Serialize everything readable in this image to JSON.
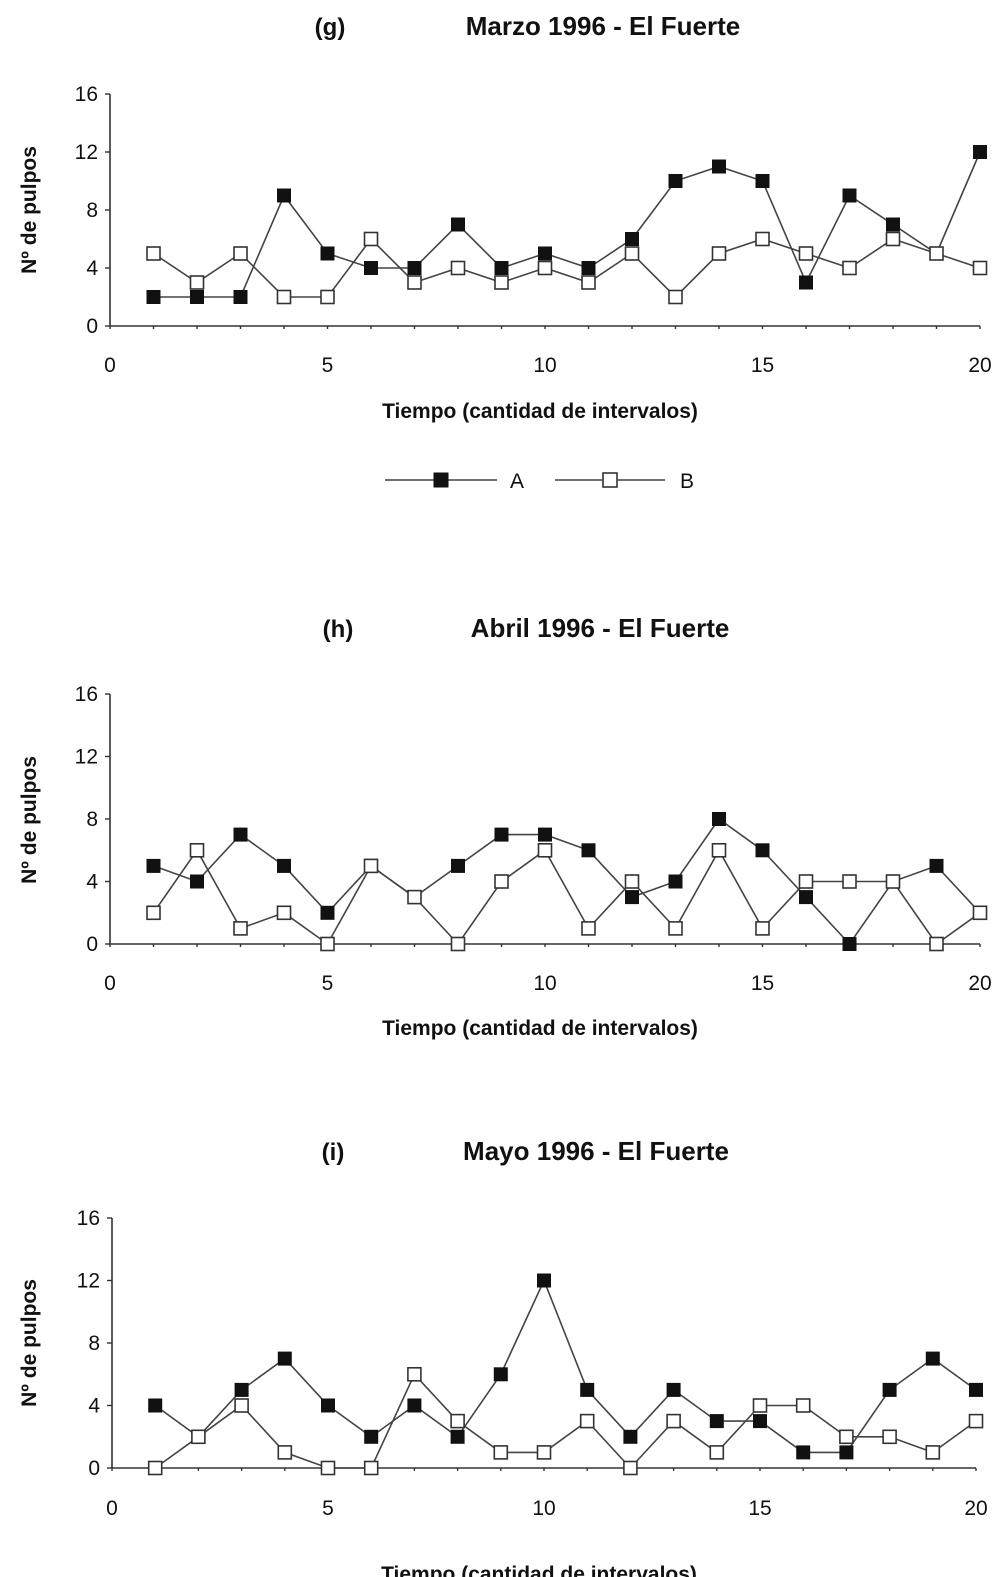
{
  "chart_data": [
    {
      "type": "line",
      "panel_label": "(g)",
      "title": "Marzo 1996 - El Fuerte",
      "xlabel": "Tiempo (cantidad de intervalos)",
      "ylabel": "Nº de pulpos",
      "xlim": [
        0,
        20
      ],
      "ylim": [
        0,
        16
      ],
      "xticks": [
        0,
        5,
        10,
        15,
        20
      ],
      "yticks": [
        0,
        4,
        8,
        12,
        16
      ],
      "grid": false,
      "x": [
        1,
        2,
        3,
        4,
        5,
        6,
        7,
        8,
        9,
        10,
        11,
        12,
        13,
        14,
        15,
        16,
        17,
        18,
        19,
        20
      ],
      "series": [
        {
          "name": "A",
          "marker": "filled-square",
          "values": [
            2,
            2,
            2,
            9,
            5,
            4,
            4,
            7,
            4,
            5,
            4,
            6,
            10,
            11,
            10,
            3,
            9,
            7,
            5,
            12
          ]
        },
        {
          "name": "B",
          "marker": "open-square",
          "values": [
            5,
            3,
            5,
            2,
            2,
            6,
            3,
            4,
            3,
            4,
            3,
            5,
            2,
            5,
            6,
            5,
            4,
            6,
            5,
            4
          ]
        }
      ],
      "legend": {
        "placement": "bottom-center",
        "entries": [
          "A",
          "B"
        ]
      }
    },
    {
      "type": "line",
      "panel_label": "(h)",
      "title": "Abril 1996 - El Fuerte",
      "xlabel": "Tiempo (cantidad de intervalos)",
      "ylabel": "Nº de pulpos",
      "xlim": [
        0,
        20
      ],
      "ylim": [
        0,
        16
      ],
      "xticks": [
        0,
        5,
        10,
        15,
        20
      ],
      "yticks": [
        0,
        4,
        8,
        12,
        16
      ],
      "grid": false,
      "x": [
        1,
        2,
        3,
        4,
        5,
        6,
        7,
        8,
        9,
        10,
        11,
        12,
        13,
        14,
        15,
        16,
        17,
        18,
        19,
        20
      ],
      "series": [
        {
          "name": "A",
          "marker": "filled-square",
          "values": [
            5,
            4,
            7,
            5,
            2,
            5,
            3,
            5,
            7,
            7,
            6,
            3,
            4,
            8,
            6,
            3,
            0,
            4,
            5,
            2
          ]
        },
        {
          "name": "B",
          "marker": "open-square",
          "values": [
            2,
            6,
            1,
            2,
            0,
            5,
            3,
            0,
            4,
            6,
            1,
            4,
            1,
            6,
            1,
            4,
            4,
            4,
            0,
            2
          ]
        }
      ]
    },
    {
      "type": "line",
      "panel_label": "(i)",
      "title": "Mayo 1996 - El Fuerte",
      "xlabel": "Tiempo (cantidad de intervalos)",
      "ylabel": "Nº de pulpos",
      "xlim": [
        0,
        20
      ],
      "ylim": [
        0,
        16
      ],
      "xticks": [
        0,
        5,
        10,
        15,
        20
      ],
      "yticks": [
        0,
        4,
        8,
        12,
        16
      ],
      "grid": false,
      "x": [
        1,
        2,
        3,
        4,
        5,
        6,
        7,
        8,
        9,
        10,
        11,
        12,
        13,
        14,
        15,
        16,
        17,
        18,
        19,
        20
      ],
      "series": [
        {
          "name": "A",
          "marker": "filled-square",
          "values": [
            4,
            2,
            5,
            7,
            4,
            2,
            4,
            2,
            6,
            12,
            5,
            2,
            5,
            3,
            3,
            1,
            1,
            5,
            7,
            5
          ]
        },
        {
          "name": "B",
          "marker": "open-square",
          "values": [
            0,
            2,
            4,
            1,
            0,
            0,
            6,
            3,
            1,
            1,
            3,
            0,
            3,
            1,
            4,
            4,
            2,
            2,
            1,
            3
          ]
        }
      ]
    }
  ]
}
